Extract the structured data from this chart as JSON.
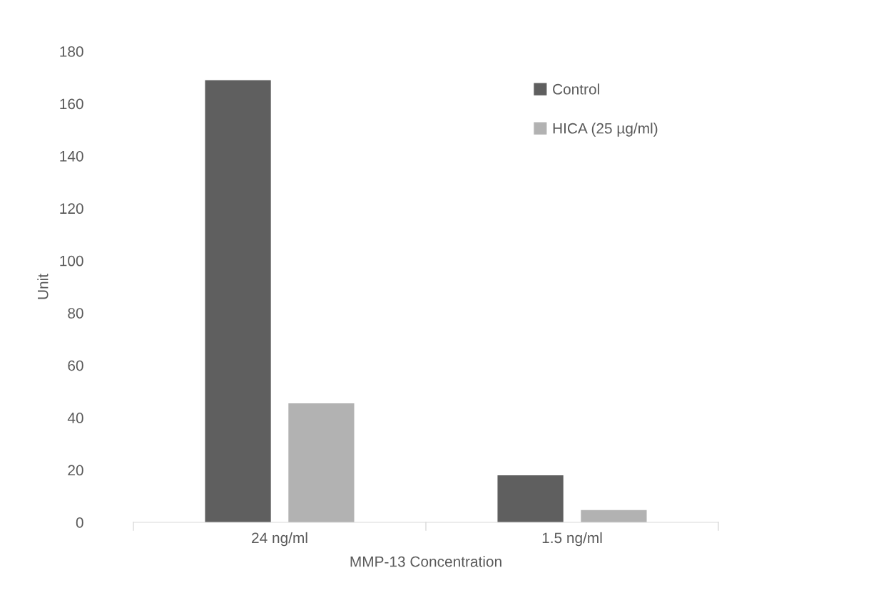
{
  "chart_data": {
    "type": "bar",
    "xlabel": "MMP-13 Concentration",
    "ylabel": "Unit",
    "categories": [
      "24 ng/ml",
      "1.5 ng/ml"
    ],
    "series": [
      {
        "name": "Control",
        "color": "#5f5f5f",
        "values": [
          169,
          18
        ]
      },
      {
        "name": "HICA (25 µg/ml)",
        "color": "#b2b2b2",
        "values": [
          45.5,
          4.7
        ]
      }
    ],
    "ylim": [
      0,
      180
    ],
    "yticks": [
      0,
      20,
      40,
      60,
      80,
      100,
      120,
      140,
      160,
      180
    ],
    "grid": false,
    "legend": "top right"
  }
}
